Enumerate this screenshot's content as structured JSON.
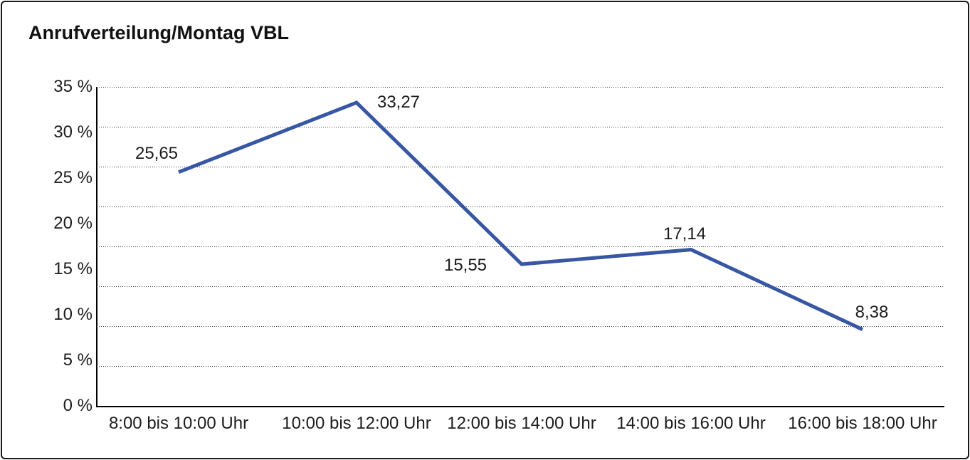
{
  "window": {
    "background": "#ffffff",
    "border_color": "#191919"
  },
  "chart_data": {
    "type": "line",
    "title": "Anrufverteilung/Montag VBL",
    "categories": [
      "8:00 bis 10:00 Uhr",
      "10:00 bis 12:00 Uhr",
      "12:00 bis 14:00 Uhr",
      "14:00 bis 16:00 Uhr",
      "16:00 bis 18:00 Uhr"
    ],
    "values": [
      25.65,
      33.27,
      15.55,
      17.14,
      8.38
    ],
    "value_labels": [
      "25,65",
      "33,27",
      "15,55",
      "17,14",
      "8,38"
    ],
    "series_name": "",
    "xlabel": "",
    "ylabel": "",
    "ylim": [
      0,
      35
    ],
    "y_ticks": [
      {
        "value": 0,
        "label": "0 %"
      },
      {
        "value": 5,
        "label": "5 %"
      },
      {
        "value": 10,
        "label": "10 %"
      },
      {
        "value": 15,
        "label": "15 %"
      },
      {
        "value": 20,
        "label": "20 %"
      },
      {
        "value": 25,
        "label": "25 %"
      },
      {
        "value": 30,
        "label": "30 %"
      },
      {
        "value": 35,
        "label": "35 %"
      }
    ],
    "grid": "horizontal-dotted",
    "gridline_count": 8,
    "legend_position": "none",
    "line_color": "#3756A3",
    "line_width": 5,
    "text_color": "#1c1c1c"
  }
}
